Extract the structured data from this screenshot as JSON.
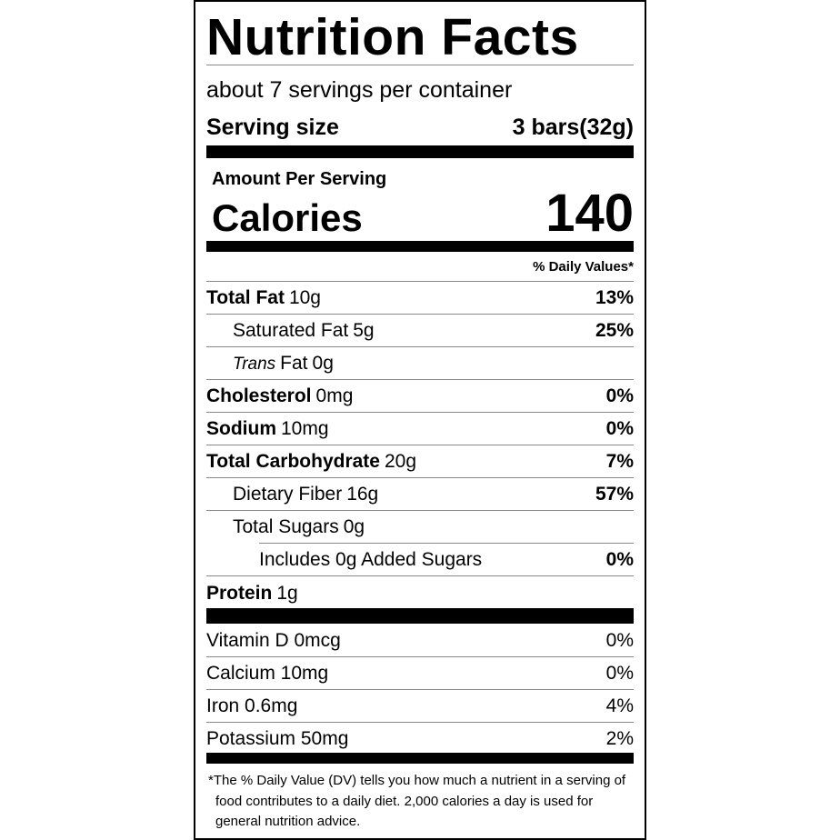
{
  "title": "Nutrition Facts",
  "servings": "about 7 servings per container",
  "serving_size": {
    "label": "Serving size",
    "value": "3 bars(32g)"
  },
  "amount_per_serving": "Amount Per Serving",
  "calories": {
    "label": "Calories",
    "value": 140
  },
  "dv_header": "% Daily Values*",
  "nutrients": [
    {
      "name": "Total Fat",
      "amount": "10g",
      "dv": "13%"
    },
    {
      "name": "Saturated Fat",
      "amount": "5g",
      "dv": "25%"
    },
    {
      "name_italic": "Trans",
      "name": "Fat",
      "amount": "0g"
    },
    {
      "name": "Cholesterol",
      "amount": "0mg",
      "dv": "0%"
    },
    {
      "name": "Sodium",
      "amount": "10mg",
      "dv": "0%"
    },
    {
      "name": "Total Carbohydrate",
      "amount": "20g",
      "dv": "7%"
    },
    {
      "name": "Dietary Fiber",
      "amount": "16g",
      "dv": "57%"
    },
    {
      "name": "Total Sugars",
      "amount": "0g"
    },
    {
      "name": "Includes 0g Added Sugars",
      "dv": "0%"
    },
    {
      "name": "Protein",
      "amount": "1g"
    }
  ],
  "vitamins": [
    {
      "name": "Vitamin D 0mcg",
      "dv": "0%"
    },
    {
      "name": "Calcium 10mg",
      "dv": "0%"
    },
    {
      "name": "Iron 0.6mg",
      "dv": "4%"
    },
    {
      "name": "Potassium 50mg",
      "dv": "2%"
    }
  ],
  "footnote": "*The % Daily Value (DV) tells you how much a nutrient in a serving of food contributes to a daily diet. 2,000 calories a day is used for general nutrition advice."
}
